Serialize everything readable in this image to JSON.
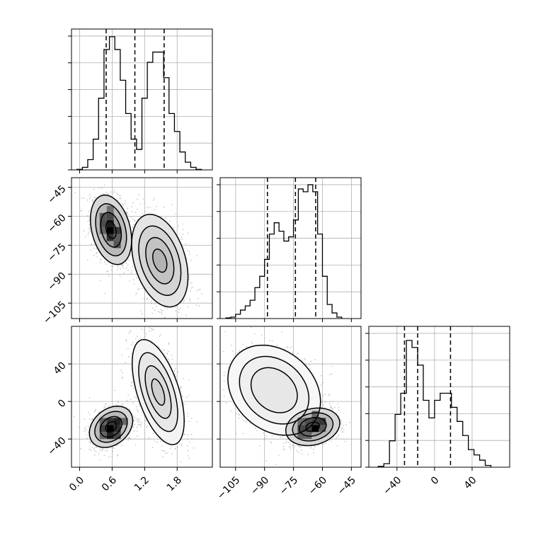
{
  "chart_data": {
    "type": "corner",
    "grid": true,
    "parameters": [
      {
        "range": [
          -0.15,
          2.45
        ],
        "ticks": [
          0.0,
          0.6,
          1.2,
          1.8
        ],
        "tick_labels": [
          "0.0",
          "0.6",
          "1.2",
          "1.8"
        ],
        "quantiles": [
          0.49,
          1.02,
          1.56
        ],
        "hist": {
          "bin_edges": [
            -0.05,
            0.05,
            0.15,
            0.25,
            0.35,
            0.45,
            0.55,
            0.65,
            0.75,
            0.85,
            0.95,
            1.05,
            1.15,
            1.25,
            1.35,
            1.45,
            1.55,
            1.65,
            1.75,
            1.85,
            1.95,
            2.05,
            2.15,
            2.25
          ],
          "counts": [
            0.2,
            1,
            4,
            12,
            28,
            47,
            52,
            47,
            35,
            22,
            12,
            8,
            28,
            42,
            46,
            46,
            36,
            22,
            15,
            7,
            3,
            1,
            0.2
          ],
          "ymax": 55
        }
      },
      {
        "range": [
          -113,
          -40
        ],
        "ticks": [
          -105,
          -90,
          -75,
          -60,
          -45
        ],
        "tick_labels": [
          "−105",
          "−90",
          "−75",
          "−60",
          "−45"
        ],
        "quantiles": [
          -88.5,
          -74,
          -63.5
        ],
        "hist": {
          "bin_edges": [
            -110,
            -107.5,
            -105,
            -102.5,
            -100,
            -97.5,
            -95,
            -92.5,
            -90,
            -87.5,
            -85,
            -82.5,
            -80,
            -77.5,
            -75,
            -72.5,
            -70,
            -67.5,
            -65,
            -62.5,
            -60,
            -57.5,
            -55,
            -52.5,
            -50
          ],
          "counts": [
            0.5,
            1,
            3,
            6,
            9,
            13,
            22,
            30,
            42,
            60,
            68,
            62,
            55,
            58,
            70,
            92,
            90,
            95,
            90,
            60,
            30,
            10,
            4,
            1
          ],
          "ymax": 100
        }
      },
      {
        "range": [
          -70,
          80
        ],
        "ticks": [
          -40,
          0,
          40
        ],
        "tick_labels": [
          "−40",
          "0",
          "40"
        ],
        "quantiles": [
          -32,
          -18,
          17
        ],
        "hist": {
          "bin_edges": [
            -60,
            -54,
            -48,
            -42,
            -36,
            -30,
            -24,
            -18,
            -12,
            -6,
            0,
            6,
            12,
            18,
            24,
            30,
            36,
            42,
            48,
            54,
            60
          ],
          "counts": [
            0.5,
            2,
            15,
            30,
            42,
            72,
            68,
            58,
            38,
            28,
            38,
            42,
            42,
            34,
            26,
            18,
            10,
            7,
            4,
            1
          ],
          "ymax": 80
        }
      }
    ],
    "pairs": [
      {
        "x": 0,
        "y": 1,
        "clusters": [
          {
            "mean": [
              0.58,
              -67
            ],
            "sd": [
              0.19,
              9
            ],
            "rho": -0.3,
            "weight": 1.0,
            "contour_scales": [
              0.5,
              1.0,
              1.5,
              2.0
            ],
            "peak_density": 1.0
          },
          {
            "mean": [
              1.48,
              -83
            ],
            "sd": [
              0.26,
              12
            ],
            "rho": -0.35,
            "weight": 1.0,
            "contour_scales": [
              0.5,
              1.0,
              1.5,
              2.0
            ],
            "peak_density": 0.55
          }
        ]
      },
      {
        "x": 0,
        "y": 2,
        "clusters": [
          {
            "mean": [
              0.58,
              -27
            ],
            "sd": [
              0.2,
              11
            ],
            "rho": 0.3,
            "weight": 1.0,
            "contour_scales": [
              0.5,
              1.0,
              1.5,
              2.0
            ],
            "peak_density": 1.0
          },
          {
            "mean": [
              1.45,
              10
            ],
            "sd": [
              0.24,
              28
            ],
            "rho": -0.55,
            "weight": 1.0,
            "contour_scales": [
              0.5,
              1.0,
              1.5,
              2.0
            ],
            "peak_density": 0.4
          }
        ]
      },
      {
        "x": 1,
        "y": 2,
        "clusters": [
          {
            "mean": [
              -85,
              12
            ],
            "sd": [
              12,
              24
            ],
            "rho": -0.25,
            "weight": 1.0,
            "contour_scales": [
              1.0,
              1.5,
              2.0
            ],
            "peak_density": 0.2
          },
          {
            "mean": [
              -65,
              -27
            ],
            "sd": [
              7,
              10
            ],
            "rho": 0.2,
            "weight": 1.0,
            "contour_scales": [
              0.5,
              1.0,
              1.5,
              2.0
            ],
            "peak_density": 1.0
          }
        ]
      }
    ]
  },
  "colors": {
    "hist_line": "#000000",
    "scatter": "#a0a0a0",
    "contour": "#000000",
    "density_high": "#000000",
    "grid": "#b0b0b0"
  }
}
